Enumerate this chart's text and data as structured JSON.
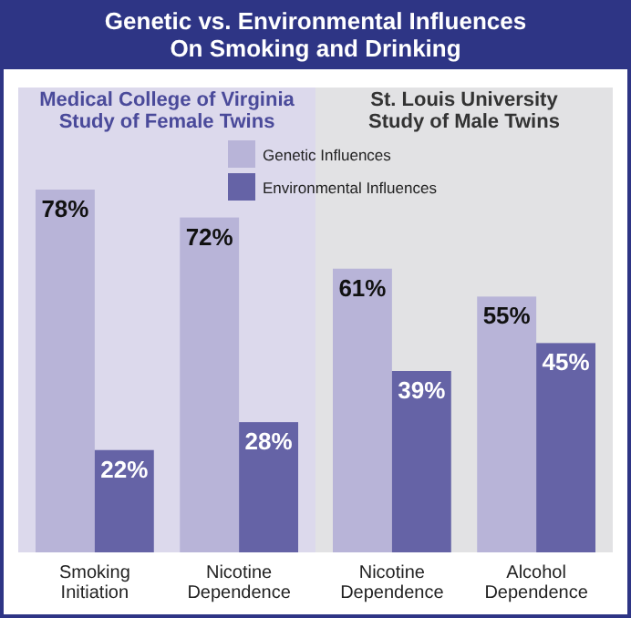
{
  "chart_data": [
    {
      "type": "bar",
      "title": "Genetic vs. Environmental Influences On Smoking and Drinking",
      "subtitle": "Medical College of Virginia Study of Female Twins",
      "categories": [
        "Smoking Initiation",
        "Nicotine Dependence"
      ],
      "series": [
        {
          "name": "Genetic Influences",
          "color": "#b8b4d8",
          "values": [
            78,
            72
          ],
          "value_labels": [
            "78%",
            "72%"
          ]
        },
        {
          "name": "Environmental Influences",
          "color": "#6563a6",
          "values": [
            22,
            28
          ],
          "value_labels": [
            "22%",
            "28%"
          ]
        }
      ],
      "legend": "top"
    },
    {
      "type": "bar",
      "subtitle": "St. Louis University Study of Male Twins",
      "categories": [
        "Nicotine Dependence",
        "Alcohol Dependence"
      ],
      "series": [
        {
          "color": "#b8b4d8",
          "values": [
            61,
            55
          ],
          "value_labels": [
            "61%",
            "55%"
          ]
        },
        {
          "color": "#6563a6",
          "values": [
            39,
            45
          ],
          "value_labels": [
            "39%",
            "45%"
          ]
        }
      ]
    }
  ]
}
